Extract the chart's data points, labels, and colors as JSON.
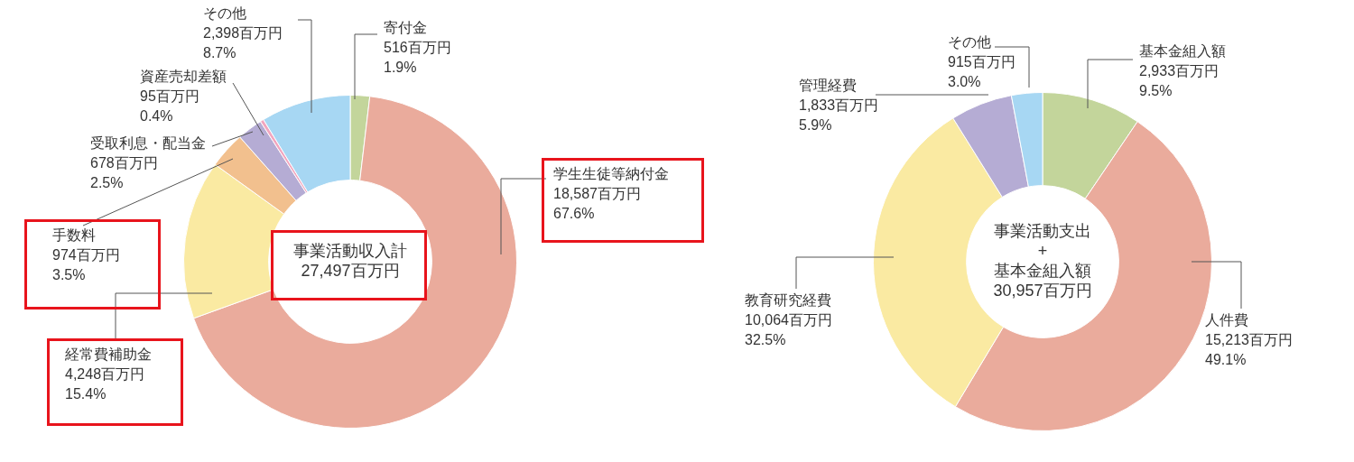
{
  "chart_data": [
    {
      "type": "donut",
      "categories": [
        "寄付金",
        "学生生徒等納付金",
        "経常費補助金",
        "手数料",
        "受取利息・配当金",
        "資産売却差額",
        "その他"
      ],
      "values": [
        516,
        18587,
        4248,
        974,
        678,
        95,
        2398
      ],
      "colors": [
        "#c3d59b",
        "#eaab9c",
        "#faeaa2",
        "#f2c08e",
        "#b5acd4",
        "#f2a6bf",
        "#a7d7f3"
      ],
      "value_labels": [
        "516百万円\n1.9%",
        "18,587百万円\n67.6%",
        "4,248百万円\n15.4%",
        "974百万円\n3.5%",
        "678百万円\n2.5%",
        "95百万円\n0.4%",
        "2,398百万円\n8.7%"
      ],
      "annotations": [
        "事業活動収入計",
        "27,497百万円"
      ]
    },
    {
      "type": "donut",
      "categories": [
        "基本金組入額",
        "人件費",
        "教育研究経費",
        "管理経費",
        "その他"
      ],
      "values": [
        2933,
        15213,
        10064,
        1833,
        915
      ],
      "colors": [
        "#c3d59b",
        "#eaab9c",
        "#faeaa2",
        "#b5acd4",
        "#a7d7f3"
      ],
      "value_labels": [
        "2,933百万円\n9.5%",
        "15,213百万円\n49.1%",
        "10,064百万円\n32.5%",
        "1,833百万円\n5.9%",
        "915百万円\n3.0%"
      ],
      "annotations": [
        "事業活動支出",
        "+",
        "基本金組入額",
        "30,957百万円"
      ]
    }
  ]
}
